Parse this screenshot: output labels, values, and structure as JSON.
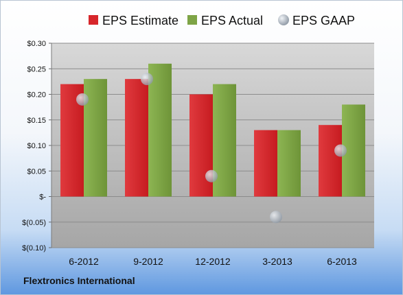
{
  "chart_data": {
    "type": "bar",
    "categories": [
      "6-2012",
      "9-2012",
      "12-2012",
      "3-2013",
      "6-2013"
    ],
    "series": [
      {
        "name": "EPS Estimate",
        "type": "bar",
        "values": [
          0.22,
          0.23,
          0.2,
          0.13,
          0.14
        ],
        "color": "#d7262b"
      },
      {
        "name": "EPS Actual",
        "type": "bar",
        "values": [
          0.23,
          0.26,
          0.22,
          0.13,
          0.18
        ],
        "color": "#7ea446"
      },
      {
        "name": "EPS GAAP",
        "type": "scatter",
        "values": [
          0.19,
          0.23,
          0.04,
          -0.04,
          0.09
        ],
        "color": "#aab4c0"
      }
    ],
    "ylim": [
      -0.1,
      0.3
    ],
    "yticks": [
      0.3,
      0.25,
      0.2,
      0.15,
      0.1,
      0.05,
      0,
      -0.05,
      -0.1
    ],
    "ytick_labels": [
      "$0.30",
      "$0.25",
      "$0.20",
      "$0.15",
      "$0.10",
      "$0.05",
      "$-",
      "$(0.05)",
      "$(0.10)"
    ],
    "grid": true,
    "legend_position": "top"
  },
  "footer": {
    "company": "Flextronics International"
  }
}
